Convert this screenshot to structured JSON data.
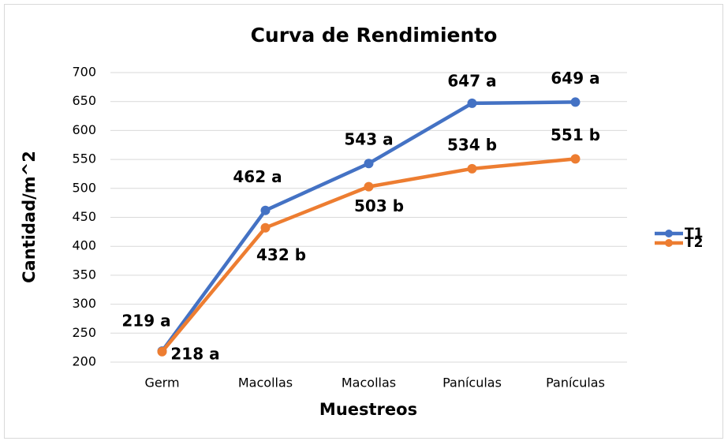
{
  "chart_data": {
    "type": "line",
    "title": "Curva de Rendimiento",
    "x_label": "Muestreos",
    "y_label": "Cantidad/m^2",
    "categories": [
      "Germ",
      "Macollas",
      "Macollas",
      "Panículas",
      "Panículas"
    ],
    "series": [
      {
        "name": "T1",
        "color": "#4472c4",
        "values": [
          219,
          462,
          543,
          647,
          649
        ],
        "value_labels": [
          "219 a",
          "462 a",
          "543 a",
          "647 a",
          "649 a"
        ]
      },
      {
        "name": "T2",
        "color": "#ed7d31",
        "values": [
          218,
          432,
          503,
          534,
          551
        ],
        "value_labels": [
          "218 a",
          "432 b",
          "503 b",
          "534 b",
          "551 b"
        ]
      }
    ],
    "ylim": [
      200,
      700
    ],
    "yticks": [
      200,
      250,
      300,
      350,
      400,
      450,
      500,
      550,
      600,
      650,
      700
    ],
    "grid": true,
    "legend": "right"
  }
}
